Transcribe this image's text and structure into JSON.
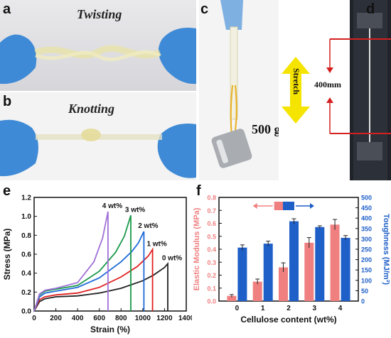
{
  "panels": {
    "a": {
      "label": "a",
      "caption": "Twisting"
    },
    "b": {
      "label": "b",
      "caption": "Knotting"
    },
    "c": {
      "label": "c",
      "mass": "500 g"
    },
    "d": {
      "label": "d",
      "arrow_text": "Stretch",
      "gauge_length": "400mm"
    },
    "e": {
      "label": "e"
    },
    "f": {
      "label": "f"
    }
  },
  "colors": {
    "glove": "#3f8ad6",
    "modulus_bar": "#f08080",
    "toughness_bar": "#1f5fc8",
    "stretch_arrow": "#f5e400",
    "gauge_line": "#d42020"
  },
  "chart_data": [
    {
      "type": "line",
      "panel": "e",
      "xlabel": "Strain (%)",
      "ylabel": "Stress (MPa)",
      "xlim": [
        0,
        1400
      ],
      "ylim": [
        0,
        1.2
      ],
      "xticks": [
        "0",
        "200",
        "400",
        "600",
        "800",
        "1000",
        "1200",
        "1400"
      ],
      "yticks": [
        "0.0",
        "0.2",
        "0.4",
        "0.6",
        "0.8",
        "1.0",
        "1.2"
      ],
      "series": [
        {
          "name": "0 wt%",
          "color": "#222222",
          "x": [
            0,
            50,
            100,
            200,
            400,
            600,
            800,
            1000,
            1100,
            1200,
            1230,
            1230
          ],
          "y": [
            0,
            0.1,
            0.13,
            0.15,
            0.16,
            0.19,
            0.24,
            0.32,
            0.38,
            0.46,
            0.5,
            0
          ]
        },
        {
          "name": "1 wt%",
          "color": "#e02020",
          "x": [
            0,
            50,
            100,
            200,
            400,
            600,
            800,
            950,
            1050,
            1090,
            1090
          ],
          "y": [
            0,
            0.12,
            0.15,
            0.17,
            0.19,
            0.25,
            0.36,
            0.47,
            0.58,
            0.65,
            0
          ]
        },
        {
          "name": "2 wt%",
          "color": "#1e6ad8",
          "x": [
            0,
            50,
            100,
            200,
            400,
            600,
            800,
            900,
            960,
            1010,
            1010
          ],
          "y": [
            0,
            0.15,
            0.19,
            0.21,
            0.25,
            0.35,
            0.52,
            0.63,
            0.72,
            0.84,
            0
          ]
        },
        {
          "name": "3 wt%",
          "color": "#1a9a4a",
          "x": [
            0,
            50,
            100,
            200,
            400,
            600,
            750,
            830,
            890,
            890
          ],
          "y": [
            0,
            0.17,
            0.21,
            0.23,
            0.27,
            0.42,
            0.62,
            0.79,
            1.01,
            0
          ]
        },
        {
          "name": "4 wt%",
          "color": "#a070d8",
          "x": [
            0,
            50,
            100,
            200,
            400,
            550,
            630,
            680,
            680
          ],
          "y": [
            0,
            0.18,
            0.22,
            0.24,
            0.3,
            0.52,
            0.77,
            1.05,
            0
          ]
        }
      ],
      "annotations": [
        "4 wt%",
        "3 wt%",
        "2 wt%",
        "1 wt%",
        "0 wt%"
      ]
    },
    {
      "type": "bar",
      "panel": "f",
      "xlabel": "Cellulose content (wt%)",
      "ylabel_left": "Elastic Modulus (MPa)",
      "ylabel_right": "Toughness (MJ/m³)",
      "categories": [
        "0",
        "1",
        "2",
        "3",
        "4"
      ],
      "ylim_left": [
        0,
        0.8
      ],
      "ylim_right": [
        0,
        500
      ],
      "yticks_left": [
        "0.0",
        "0.1",
        "0.2",
        "0.3",
        "0.4",
        "0.5",
        "0.6",
        "0.7",
        "0.8"
      ],
      "yticks_right": [
        "0",
        "50",
        "100",
        "150",
        "200",
        "250",
        "300",
        "350",
        "400",
        "450",
        "500"
      ],
      "series": [
        {
          "axis": "left",
          "color": "#f08080",
          "values": [
            0.04,
            0.15,
            0.26,
            0.45,
            0.59
          ],
          "errors": [
            0.01,
            0.02,
            0.035,
            0.04,
            0.04
          ]
        },
        {
          "axis": "right",
          "color": "#1f5fc8",
          "values": [
            258,
            277,
            385,
            357,
            305
          ],
          "errors": [
            13,
            12,
            12,
            6,
            11
          ]
        }
      ]
    }
  ]
}
